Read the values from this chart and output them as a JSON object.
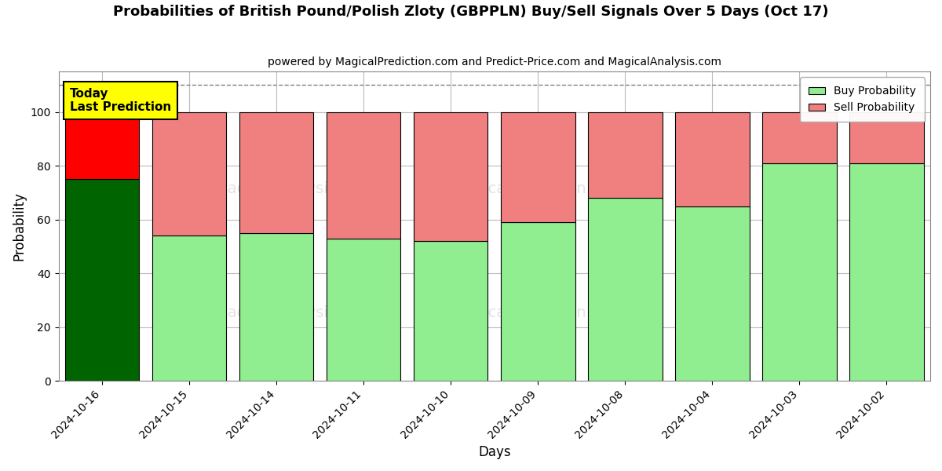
{
  "title": "Probabilities of British Pound/Polish Zloty (GBPPLN) Buy/Sell Signals Over 5 Days (Oct 17)",
  "subtitle": "powered by MagicalPrediction.com and Predict-Price.com and MagicalAnalysis.com",
  "xlabel": "Days",
  "ylabel": "Probability",
  "categories": [
    "2024-10-16",
    "2024-10-15",
    "2024-10-14",
    "2024-10-11",
    "2024-10-10",
    "2024-10-09",
    "2024-10-08",
    "2024-10-04",
    "2024-10-03",
    "2024-10-02"
  ],
  "buy_values": [
    75,
    54,
    55,
    53,
    52,
    59,
    68,
    65,
    81,
    81
  ],
  "sell_values": [
    25,
    46,
    45,
    47,
    48,
    41,
    32,
    35,
    19,
    19
  ],
  "today_bar_index": 0,
  "today_buy_color": "#006400",
  "today_sell_color": "#FF0000",
  "other_buy_color": "#90EE90",
  "other_sell_color": "#F08080",
  "today_label_bg": "#FFFF00",
  "today_label_text": "Today\nLast Prediction",
  "legend_buy_label": "Buy Probability",
  "legend_sell_label": "Sell Probability",
  "ylim": [
    0,
    115
  ],
  "yticks": [
    0,
    20,
    40,
    60,
    80,
    100
  ],
  "dashed_line_y": 110,
  "background_color": "#ffffff",
  "bar_edge_color": "#000000",
  "grid_color": "#bbbbbb"
}
